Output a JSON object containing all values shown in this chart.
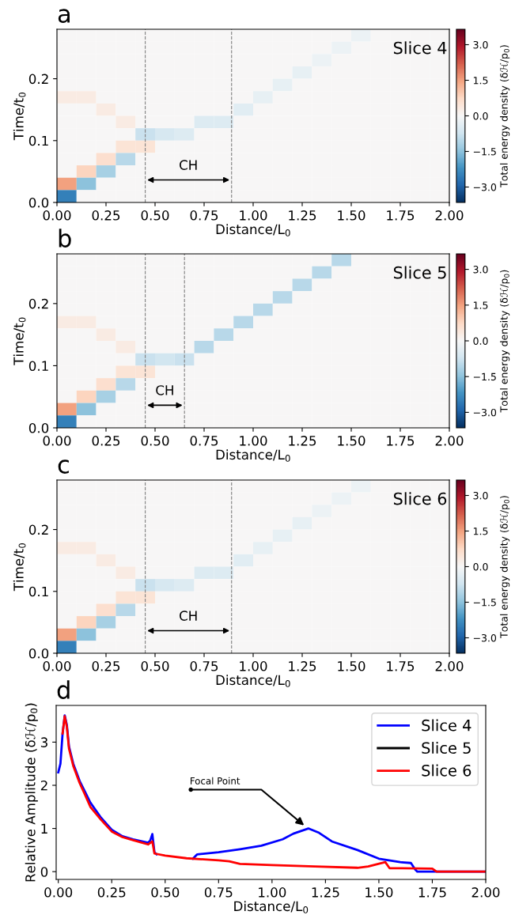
{
  "chart_data": [
    {
      "type": "heatmap",
      "title": "a",
      "xlabel": "Distance/L$_{0}$",
      "ylabel": "Time/t$_{0}$",
      "clabel": "Total energy density (δℋ/p$_{0}$)",
      "annotations": [
        "Slice 4",
        "CH"
      ],
      "x": [
        0.05,
        0.15,
        0.25,
        0.35,
        0.45,
        0.55,
        0.65,
        0.75,
        0.85,
        0.95,
        1.05,
        1.15,
        1.25,
        1.35,
        1.45,
        1.55,
        1.65,
        1.75,
        1.85,
        1.95
      ],
      "y": [
        0.27,
        0.25,
        0.23,
        0.21,
        0.19,
        0.17,
        0.15,
        0.13,
        0.11,
        0.09,
        0.07,
        0.05,
        0.03,
        0.01
      ],
      "cells": [
        [
          0,
          0,
          0,
          0,
          0,
          0,
          0,
          0,
          0,
          0,
          0,
          0,
          0,
          0,
          0,
          -0.2,
          0,
          0,
          0,
          0
        ],
        [
          0,
          0,
          0,
          0,
          0,
          0,
          0,
          0,
          0,
          0,
          0,
          0,
          0,
          0,
          -0.2,
          0,
          0,
          0,
          0,
          0
        ],
        [
          0,
          0,
          0,
          0,
          0,
          0,
          0,
          0,
          0,
          0,
          0,
          0,
          0,
          -0.2,
          0,
          0,
          0,
          0,
          0,
          0
        ],
        [
          0,
          0,
          0,
          0,
          0,
          0,
          0,
          0,
          0,
          0,
          0,
          0,
          -0.3,
          0,
          0,
          0,
          0,
          0,
          0,
          0
        ],
        [
          0,
          0,
          0,
          0,
          0,
          0,
          0,
          0,
          0,
          0,
          0,
          -0.3,
          0,
          0,
          0,
          0,
          0,
          0,
          0,
          0
        ],
        [
          0.3,
          0.3,
          0,
          0,
          0,
          0,
          0,
          0,
          0,
          0,
          -0.3,
          0,
          0,
          0,
          0,
          0,
          0,
          0,
          0,
          0
        ],
        [
          0,
          0,
          0.3,
          0,
          0,
          0,
          0,
          0,
          0,
          -0.4,
          0,
          0,
          0,
          0,
          0,
          0,
          0,
          0,
          0,
          0
        ],
        [
          0,
          0,
          0,
          0.3,
          0,
          0,
          0,
          -0.5,
          -0.5,
          0,
          0,
          0,
          0,
          0,
          0,
          0,
          0,
          0,
          0,
          0
        ],
        [
          0,
          0,
          0,
          0,
          -0.8,
          -0.6,
          -0.5,
          0,
          0,
          0,
          0,
          0,
          0,
          0,
          0,
          0,
          0,
          0,
          0,
          0
        ],
        [
          0,
          0,
          0,
          0.5,
          0.5,
          0,
          0,
          0,
          0,
          0,
          0,
          0,
          0,
          0,
          0,
          0,
          0,
          0,
          0,
          0
        ],
        [
          0,
          0,
          0.6,
          -1.0,
          0,
          0,
          0,
          0,
          0,
          0,
          0,
          0,
          0,
          0,
          0,
          0,
          0,
          0,
          0,
          0
        ],
        [
          0,
          0.8,
          -1.2,
          0,
          0,
          0,
          0,
          0,
          0,
          0,
          0,
          0,
          0,
          0,
          0,
          0,
          0,
          0,
          0,
          0
        ],
        [
          1.5,
          -1.5,
          0,
          0,
          0,
          0,
          0,
          0,
          0,
          0,
          0,
          0,
          0,
          0,
          0,
          0,
          0,
          0,
          0,
          0
        ],
        [
          -2.5,
          0,
          0,
          0,
          0,
          0,
          0,
          0,
          0,
          0,
          0,
          0,
          0,
          0,
          0,
          0,
          0,
          0,
          0,
          0
        ]
      ],
      "xlim": [
        0,
        2
      ],
      "xticks": [
        {
          "value": 0,
          "label": "0.00"
        },
        {
          "value": 0.25,
          "label": "0.25"
        },
        {
          "value": 0.5,
          "label": "0.50"
        },
        {
          "value": 0.75,
          "label": "0.75"
        },
        {
          "value": 1,
          "label": "1.00"
        },
        {
          "value": 1.25,
          "label": "1.25"
        },
        {
          "value": 1.5,
          "label": "1.50"
        },
        {
          "value": 1.75,
          "label": "1.75"
        },
        {
          "value": 2,
          "label": "2.00"
        }
      ],
      "ylim": [
        0,
        0.28
      ],
      "yticks": [
        {
          "value": 0,
          "label": "0.0"
        },
        {
          "value": 0.1,
          "label": "0.1"
        },
        {
          "value": 0.2,
          "label": "0.2"
        }
      ],
      "clim": [
        -3.65,
        3.65
      ],
      "cticks": [
        {
          "value": -3,
          "label": "−3.0"
        },
        {
          "value": -1.5,
          "label": "−1.5"
        },
        {
          "value": 0,
          "label": "0.0"
        },
        {
          "value": 1.5,
          "label": "1.5"
        },
        {
          "value": 3,
          "label": "3.0"
        }
      ],
      "ref_lines": [
        {
          "axis": "x",
          "value": 0.45,
          "color": "#808080",
          "line_style": "dashed"
        },
        {
          "axis": "x",
          "value": 0.89,
          "color": "#808080",
          "line_style": "dashed"
        }
      ]
    },
    {
      "type": "heatmap",
      "title": "b",
      "xlabel": "Distance/L$_{0}$",
      "ylabel": "Time/t$_{0}$",
      "clabel": "Total energy density (δℋ/p$_{0}$)",
      "annotations": [
        "Slice 5",
        "CH"
      ],
      "x": [
        0.05,
        0.15,
        0.25,
        0.35,
        0.45,
        0.55,
        0.65,
        0.75,
        0.85,
        0.95,
        1.05,
        1.15,
        1.25,
        1.35,
        1.45,
        1.55,
        1.65,
        1.75,
        1.85,
        1.95
      ],
      "y": [
        0.27,
        0.25,
        0.23,
        0.21,
        0.19,
        0.17,
        0.15,
        0.13,
        0.11,
        0.09,
        0.07,
        0.05,
        0.03,
        0.01
      ],
      "cells": [
        [
          0,
          0,
          0,
          0,
          0,
          0,
          0,
          0,
          0,
          0,
          0,
          0,
          0,
          0,
          -1.0,
          0,
          0,
          0,
          0,
          0
        ],
        [
          0,
          0,
          0,
          0,
          0,
          0,
          0,
          0,
          0,
          0,
          0,
          0,
          0,
          -1.0,
          0,
          0,
          0,
          0,
          0,
          0
        ],
        [
          0,
          0,
          0,
          0,
          0,
          0,
          0,
          0,
          0,
          0,
          0,
          0,
          -1.0,
          0,
          0,
          0,
          0,
          0,
          0,
          0
        ],
        [
          0,
          0,
          0,
          0,
          0,
          0,
          0,
          0,
          0,
          0,
          0,
          -1.0,
          0,
          0,
          0,
          0,
          0,
          0,
          0,
          0
        ],
        [
          0,
          0,
          0,
          0,
          0,
          0,
          0,
          0,
          0,
          0,
          -1.0,
          0,
          0,
          0,
          0,
          0,
          0,
          0,
          0,
          0
        ],
        [
          0.3,
          0.3,
          0,
          0,
          0,
          0,
          0,
          0,
          0,
          -1.0,
          0,
          0,
          0,
          0,
          0,
          0,
          0,
          0,
          0,
          0
        ],
        [
          0,
          0,
          0.3,
          0,
          0,
          0,
          0,
          0,
          -1.0,
          0,
          0,
          0,
          0,
          0,
          0,
          0,
          0,
          0,
          0,
          0
        ],
        [
          0,
          0,
          0,
          0.3,
          0,
          0,
          0,
          -1.0,
          0,
          0,
          0,
          0,
          0,
          0,
          0,
          0,
          0,
          0,
          0,
          0
        ],
        [
          0,
          0,
          0,
          0,
          -0.8,
          -0.7,
          -0.8,
          0,
          0,
          0,
          0,
          0,
          0,
          0,
          0,
          0,
          0,
          0,
          0,
          0
        ],
        [
          0,
          0,
          0,
          0.5,
          0.5,
          0,
          0,
          0,
          0,
          0,
          0,
          0,
          0,
          0,
          0,
          0,
          0,
          0,
          0,
          0
        ],
        [
          0,
          0,
          0.6,
          -1.0,
          0,
          0,
          0,
          0,
          0,
          0,
          0,
          0,
          0,
          0,
          0,
          0,
          0,
          0,
          0,
          0
        ],
        [
          0,
          0.8,
          -1.2,
          0,
          0,
          0,
          0,
          0,
          0,
          0,
          0,
          0,
          0,
          0,
          0,
          0,
          0,
          0,
          0,
          0
        ],
        [
          1.5,
          -1.5,
          0,
          0,
          0,
          0,
          0,
          0,
          0,
          0,
          0,
          0,
          0,
          0,
          0,
          0,
          0,
          0,
          0,
          0
        ],
        [
          -2.5,
          0,
          0,
          0,
          0,
          0,
          0,
          0,
          0,
          0,
          0,
          0,
          0,
          0,
          0,
          0,
          0,
          0,
          0,
          0
        ]
      ],
      "xlim": [
        0,
        2
      ],
      "xticks": [
        {
          "value": 0,
          "label": "0.00"
        },
        {
          "value": 0.25,
          "label": "0.25"
        },
        {
          "value": 0.5,
          "label": "0.50"
        },
        {
          "value": 0.75,
          "label": "0.75"
        },
        {
          "value": 1,
          "label": "1.00"
        },
        {
          "value": 1.25,
          "label": "1.25"
        },
        {
          "value": 1.5,
          "label": "1.50"
        },
        {
          "value": 1.75,
          "label": "1.75"
        },
        {
          "value": 2,
          "label": "2.00"
        }
      ],
      "ylim": [
        0,
        0.28
      ],
      "yticks": [
        {
          "value": 0,
          "label": "0.0"
        },
        {
          "value": 0.1,
          "label": "0.1"
        },
        {
          "value": 0.2,
          "label": "0.2"
        }
      ],
      "clim": [
        -3.65,
        3.65
      ],
      "cticks": [
        {
          "value": -3,
          "label": "−3.0"
        },
        {
          "value": -1.5,
          "label": "−1.5"
        },
        {
          "value": 0,
          "label": "0.0"
        },
        {
          "value": 1.5,
          "label": "1.5"
        },
        {
          "value": 3,
          "label": "3.0"
        }
      ],
      "ref_lines": [
        {
          "axis": "x",
          "value": 0.45,
          "color": "#808080",
          "line_style": "dashed"
        },
        {
          "axis": "x",
          "value": 0.65,
          "color": "#808080",
          "line_style": "dashed"
        }
      ]
    },
    {
      "type": "heatmap",
      "title": "c",
      "xlabel": "Distance/L$_{0}$",
      "ylabel": "Time/t$_{0}$",
      "clabel": "Total energy density (δℋ/p$_{0}$)",
      "annotations": [
        "Slice 6",
        "CH"
      ],
      "x": [
        0.05,
        0.15,
        0.25,
        0.35,
        0.45,
        0.55,
        0.65,
        0.75,
        0.85,
        0.95,
        1.05,
        1.15,
        1.25,
        1.35,
        1.45,
        1.55,
        1.65,
        1.75,
        1.85,
        1.95
      ],
      "y": [
        0.27,
        0.25,
        0.23,
        0.21,
        0.19,
        0.17,
        0.15,
        0.13,
        0.11,
        0.09,
        0.07,
        0.05,
        0.03,
        0.01
      ],
      "cells": [
        [
          0,
          0,
          0,
          0,
          0,
          0,
          0,
          0,
          0,
          0,
          0,
          0,
          0,
          0,
          0,
          -0.2,
          0,
          0,
          0,
          0
        ],
        [
          0,
          0,
          0,
          0,
          0,
          0,
          0,
          0,
          0,
          0,
          0,
          0,
          0,
          0,
          -0.2,
          0,
          0,
          0,
          0,
          0
        ],
        [
          0,
          0,
          0,
          0,
          0,
          0,
          0,
          0,
          0,
          0,
          0,
          0,
          0,
          -0.2,
          0,
          0,
          0,
          0,
          0,
          0
        ],
        [
          0,
          0,
          0,
          0,
          0,
          0,
          0,
          0,
          0,
          0,
          0,
          0,
          -0.3,
          0,
          0,
          0,
          0,
          0,
          0,
          0
        ],
        [
          0,
          0,
          0,
          0,
          0,
          0,
          0,
          0,
          0,
          0,
          0,
          -0.3,
          0,
          0,
          0,
          0,
          0,
          0,
          0,
          0
        ],
        [
          0.3,
          0.3,
          0,
          0,
          0,
          0,
          0,
          0,
          0,
          0,
          -0.3,
          0,
          0,
          0,
          0,
          0,
          0,
          0,
          0,
          0
        ],
        [
          0,
          0,
          0.3,
          0,
          0,
          0,
          0,
          0,
          0,
          -0.4,
          0,
          0,
          0,
          0,
          0,
          0,
          0,
          0,
          0,
          0
        ],
        [
          0,
          0,
          0,
          0.3,
          0,
          0,
          0,
          -0.5,
          -0.5,
          0,
          0,
          0,
          0,
          0,
          0,
          0,
          0,
          0,
          0,
          0
        ],
        [
          0,
          0,
          0,
          0,
          -0.8,
          -0.6,
          -0.5,
          0,
          0,
          0,
          0,
          0,
          0,
          0,
          0,
          0,
          0,
          0,
          0,
          0
        ],
        [
          0,
          0,
          0,
          0.5,
          0.5,
          0,
          0,
          0,
          0,
          0,
          0,
          0,
          0,
          0,
          0,
          0,
          0,
          0,
          0,
          0
        ],
        [
          0,
          0,
          0.6,
          -1.0,
          0,
          0,
          0,
          0,
          0,
          0,
          0,
          0,
          0,
          0,
          0,
          0,
          0,
          0,
          0,
          0
        ],
        [
          0,
          0.8,
          -1.2,
          0,
          0,
          0,
          0,
          0,
          0,
          0,
          0,
          0,
          0,
          0,
          0,
          0,
          0,
          0,
          0,
          0
        ],
        [
          1.5,
          -1.5,
          0,
          0,
          0,
          0,
          0,
          0,
          0,
          0,
          0,
          0,
          0,
          0,
          0,
          0,
          0,
          0,
          0,
          0
        ],
        [
          -2.5,
          0,
          0,
          0,
          0,
          0,
          0,
          0,
          0,
          0,
          0,
          0,
          0,
          0,
          0,
          0,
          0,
          0,
          0,
          0
        ]
      ],
      "xlim": [
        0,
        2
      ],
      "xticks": [
        {
          "value": 0,
          "label": "0.00"
        },
        {
          "value": 0.25,
          "label": "0.25"
        },
        {
          "value": 0.5,
          "label": "0.50"
        },
        {
          "value": 0.75,
          "label": "0.75"
        },
        {
          "value": 1,
          "label": "1.00"
        },
        {
          "value": 1.25,
          "label": "1.25"
        },
        {
          "value": 1.5,
          "label": "1.50"
        },
        {
          "value": 1.75,
          "label": "1.75"
        },
        {
          "value": 2,
          "label": "2.00"
        }
      ],
      "ylim": [
        0,
        0.28
      ],
      "yticks": [
        {
          "value": 0,
          "label": "0.0"
        },
        {
          "value": 0.1,
          "label": "0.1"
        },
        {
          "value": 0.2,
          "label": "0.2"
        }
      ],
      "clim": [
        -3.65,
        3.65
      ],
      "cticks": [
        {
          "value": -3,
          "label": "−3.0"
        },
        {
          "value": -1.5,
          "label": "−1.5"
        },
        {
          "value": 0,
          "label": "0.0"
        },
        {
          "value": 1.5,
          "label": "1.5"
        },
        {
          "value": 3,
          "label": "3.0"
        }
      ],
      "ref_lines": [
        {
          "axis": "x",
          "value": 0.45,
          "color": "#808080",
          "line_style": "dashed"
        },
        {
          "axis": "x",
          "value": 0.89,
          "color": "#808080",
          "line_style": "dashed"
        }
      ]
    },
    {
      "type": "line",
      "title": "d",
      "xlabel": "Distance/L$_{0}$",
      "ylabel": "Relative Amplitude (δℋ/p$_{0}$)",
      "annotations": [
        {
          "text": "Focal Point",
          "x": 1.17,
          "y": 1.0
        }
      ],
      "series": [
        {
          "name": "Slice 4",
          "color": "#0000ff",
          "x": [
            0,
            0.01,
            0.02,
            0.03,
            0.04,
            0.05,
            0.07,
            0.1,
            0.125,
            0.15,
            0.2,
            0.25,
            0.3,
            0.35,
            0.42,
            0.43,
            0.44,
            0.45,
            0.46,
            0.5,
            0.55,
            0.6,
            0.63,
            0.65,
            0.75,
            0.85,
            0.95,
            1.05,
            1.1,
            1.17,
            1.22,
            1.28,
            1.4,
            1.5,
            1.6,
            1.65,
            1.67,
            1.68,
            2.0
          ],
          "values": [
            2.3,
            2.5,
            3.2,
            3.62,
            3.4,
            2.9,
            2.5,
            2.1,
            1.85,
            1.6,
            1.25,
            0.97,
            0.82,
            0.75,
            0.67,
            0.72,
            0.87,
            0.45,
            0.4,
            null,
            null,
            null,
            0.3,
            0.4,
            0.45,
            0.52,
            0.6,
            0.75,
            0.88,
            1.0,
            0.9,
            0.7,
            0.5,
            0.3,
            0.22,
            0.2,
            0.05,
            0.0,
            0.0
          ]
        },
        {
          "name": "Slice 5",
          "color": "#000000"
        },
        {
          "name": "Slice 6",
          "color": "#ff0000",
          "x": [
            0.02,
            0.03,
            0.04,
            0.05,
            0.07,
            0.1,
            0.125,
            0.15,
            0.2,
            0.25,
            0.3,
            0.35,
            0.42,
            0.44,
            0.45,
            0.5,
            0.6,
            0.75,
            0.8,
            0.85,
            1.0,
            1.2,
            1.4,
            1.45,
            1.53,
            1.55,
            1.75,
            1.77,
            2.0
          ],
          "values": [
            3.2,
            3.6,
            3.35,
            2.85,
            2.45,
            2.05,
            1.78,
            1.5,
            1.2,
            0.93,
            0.8,
            0.73,
            0.63,
            0.7,
            0.42,
            0.37,
            0.31,
            0.26,
            0.24,
            0.18,
            0.15,
            0.12,
            0.09,
            0.12,
            0.22,
            0.08,
            0.07,
            0.0,
            0.0
          ]
        }
      ],
      "xlim": [
        -0.01,
        2.0
      ],
      "xticks": [
        {
          "value": 0,
          "label": "0.00"
        },
        {
          "value": 0.25,
          "label": "0.25"
        },
        {
          "value": 0.5,
          "label": "0.50"
        },
        {
          "value": 0.75,
          "label": "0.75"
        },
        {
          "value": 1,
          "label": "1.00"
        },
        {
          "value": 1.25,
          "label": "1.25"
        },
        {
          "value": 1.5,
          "label": "1.50"
        },
        {
          "value": 1.75,
          "label": "1.75"
        },
        {
          "value": 2,
          "label": "2.00"
        }
      ],
      "ylim": [
        -0.18,
        3.85
      ],
      "yticks": [
        0,
        1,
        2,
        3
      ],
      "legend": "top right",
      "grid": false,
      "marker": "none",
      "line_style": "solid"
    }
  ]
}
